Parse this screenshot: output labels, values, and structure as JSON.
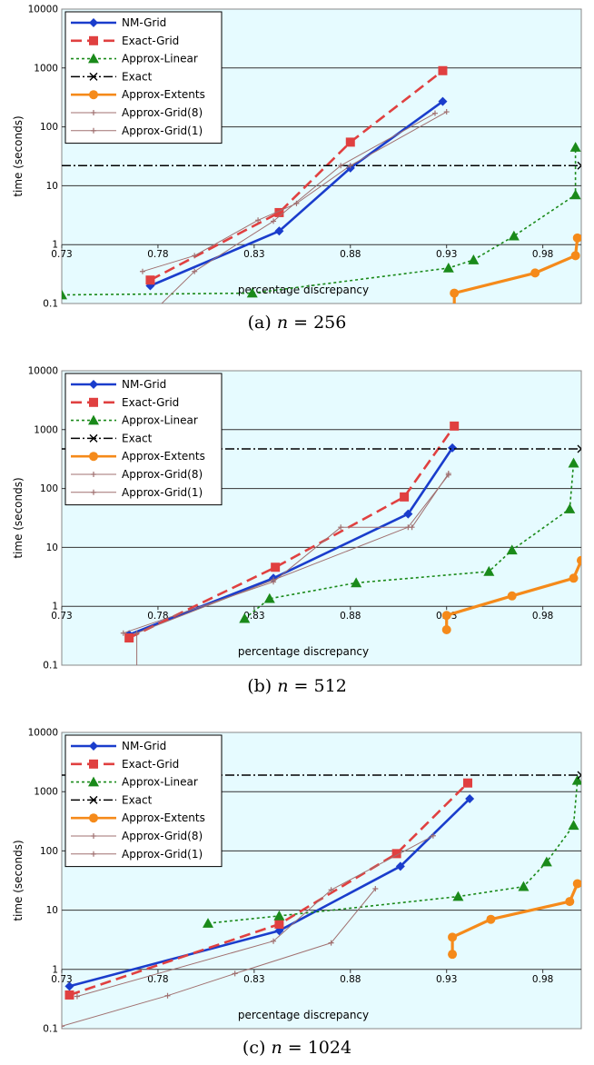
{
  "chart_data": [
    {
      "type": "line",
      "caption_prefix": "(a)",
      "caption_var": "n",
      "caption_value": "256",
      "xlabel": "percentage discrepancy",
      "ylabel": "time (seconds)",
      "xlim": [
        0.73,
        1.0
      ],
      "ylim": [
        0.1,
        10000
      ],
      "log_y": true,
      "x_ticks": [
        "0.73",
        "0.78",
        "0.83",
        "0.88",
        "0.93",
        "0.98"
      ],
      "y_ticks": [
        "0.1",
        "1",
        "10",
        "100",
        "1000",
        "10000"
      ],
      "legend_position": "top-left",
      "series": [
        {
          "name": "NM-Grid",
          "color": "#1a3dcc",
          "x": [
            0.776,
            0.843,
            0.88,
            0.928
          ],
          "y": [
            0.2,
            1.7,
            20,
            270
          ]
        },
        {
          "name": "Exact-Grid",
          "color": "#e04040",
          "x": [
            0.776,
            0.843,
            0.88,
            0.928
          ],
          "y": [
            0.25,
            3.5,
            55,
            900
          ]
        },
        {
          "name": "Approx-Linear",
          "color": "#1a8a1a",
          "x": [
            0.73,
            0.829,
            0.931,
            0.944,
            0.965,
            0.997,
            0.997
          ],
          "y": [
            0.14,
            0.15,
            0.4,
            0.55,
            1.4,
            7,
            45
          ]
        },
        {
          "name": "Exact",
          "color": "#000000",
          "x": [
            0.73,
            1.0
          ],
          "y": [
            22,
            22
          ]
        },
        {
          "name": "Approx-Extents",
          "color": "#f58a1a",
          "x": [
            0.934,
            0.934,
            0.976,
            0.997,
            0.998
          ],
          "y": [
            0.07,
            0.15,
            0.33,
            0.65,
            1.3
          ]
        },
        {
          "name": "Approx-Grid(8)",
          "color": "#a07070",
          "x": [
            0.772,
            0.799,
            0.832,
            0.852,
            0.88,
            0.93
          ],
          "y": [
            0.35,
            0.65,
            2.6,
            5.0,
            22,
            180
          ]
        },
        {
          "name": "Approx-Grid(1)",
          "color": "#a07070",
          "x": [
            0.775,
            0.799,
            0.84,
            0.875,
            0.924
          ],
          "y": [
            0.06,
            0.35,
            2.5,
            22,
            170
          ]
        }
      ]
    },
    {
      "type": "line",
      "caption_prefix": "(b)",
      "caption_var": "n",
      "caption_value": "512",
      "xlabel": "percentage discrepancy",
      "ylabel": "time (seconds)",
      "xlim": [
        0.73,
        1.0
      ],
      "ylim": [
        0.1,
        10000
      ],
      "log_y": true,
      "x_ticks": [
        "0.73",
        "0.78",
        "0.83",
        "0.88",
        "0.93",
        "0.98"
      ],
      "y_ticks": [
        "0.1",
        "1",
        "10",
        "100",
        "1000",
        "10000"
      ],
      "legend_position": "top-left",
      "series": [
        {
          "name": "NM-Grid",
          "color": "#1a3dcc",
          "x": [
            0.765,
            0.84,
            0.91,
            0.933
          ],
          "y": [
            0.33,
            3.0,
            37,
            490
          ]
        },
        {
          "name": "Exact-Grid",
          "color": "#e04040",
          "x": [
            0.765,
            0.841,
            0.908,
            0.934
          ],
          "y": [
            0.29,
            4.6,
            72,
            1150
          ]
        },
        {
          "name": "Approx-Linear",
          "color": "#1a8a1a",
          "x": [
            0.825,
            0.838,
            0.883,
            0.952,
            0.964,
            0.994,
            0.996
          ],
          "y": [
            0.62,
            1.35,
            2.5,
            3.9,
            9,
            45,
            270
          ]
        },
        {
          "name": "Exact",
          "color": "#000000",
          "x": [
            0.73,
            1.0
          ],
          "y": [
            470,
            470
          ]
        },
        {
          "name": "Approx-Extents",
          "color": "#f58a1a",
          "x": [
            0.93,
            0.93,
            0.964,
            0.996,
            1.0
          ],
          "y": [
            0.4,
            0.7,
            1.5,
            3.0,
            6.0
          ]
        },
        {
          "name": "Approx-Grid(8)",
          "color": "#a07070",
          "x": [
            0.762,
            0.84,
            0.875,
            0.912,
            0.931
          ],
          "y": [
            0.35,
            2.6,
            22,
            22,
            180
          ]
        },
        {
          "name": "Approx-Grid(1)",
          "color": "#a07070",
          "x": [
            0.769,
            0.769,
            0.84,
            0.91,
            0.931
          ],
          "y": [
            0.08,
            0.35,
            2.8,
            22,
            170
          ]
        }
      ]
    },
    {
      "type": "line",
      "caption_prefix": "(c)",
      "caption_var": "n",
      "caption_value": "1024",
      "xlabel": "percentage discrepancy",
      "ylabel": "time (seconds)",
      "xlim": [
        0.73,
        1.0
      ],
      "ylim": [
        0.1,
        10000
      ],
      "log_y": true,
      "x_ticks": [
        "0.73",
        "0.78",
        "0.83",
        "0.88",
        "0.93",
        "0.98"
      ],
      "y_ticks": [
        "0.1",
        "1",
        "10",
        "100",
        "1000",
        "10000"
      ],
      "legend_position": "top-left",
      "series": [
        {
          "name": "NM-Grid",
          "color": "#1a3dcc",
          "x": [
            0.734,
            0.843,
            0.906,
            0.942
          ],
          "y": [
            0.52,
            4.5,
            55,
            760
          ]
        },
        {
          "name": "Exact-Grid",
          "color": "#e04040",
          "x": [
            0.734,
            0.843,
            0.904,
            0.941
          ],
          "y": [
            0.37,
            5.8,
            90,
            1400
          ]
        },
        {
          "name": "Approx-Linear",
          "color": "#1a8a1a",
          "x": [
            0.806,
            0.843,
            0.936,
            0.97,
            0.982,
            0.996,
            0.998
          ],
          "y": [
            6,
            8,
            17,
            25,
            65,
            270,
            1550
          ]
        },
        {
          "name": "Exact",
          "color": "#000000",
          "x": [
            0.73,
            1.0
          ],
          "y": [
            1900,
            1900
          ]
        },
        {
          "name": "Approx-Extents",
          "color": "#f58a1a",
          "x": [
            0.933,
            0.933,
            0.953,
            0.994,
            0.998
          ],
          "y": [
            1.8,
            3.5,
            7,
            14,
            28
          ]
        },
        {
          "name": "Approx-Grid(8)",
          "color": "#a07070",
          "x": [
            0.738,
            0.84,
            0.87,
            0.923
          ],
          "y": [
            0.35,
            3.0,
            22,
            180
          ]
        },
        {
          "name": "Approx-Grid(1)",
          "color": "#a07070",
          "x": [
            0.73,
            0.785,
            0.82,
            0.87,
            0.893
          ],
          "y": [
            0.11,
            0.36,
            0.85,
            2.8,
            23
          ]
        }
      ]
    }
  ]
}
